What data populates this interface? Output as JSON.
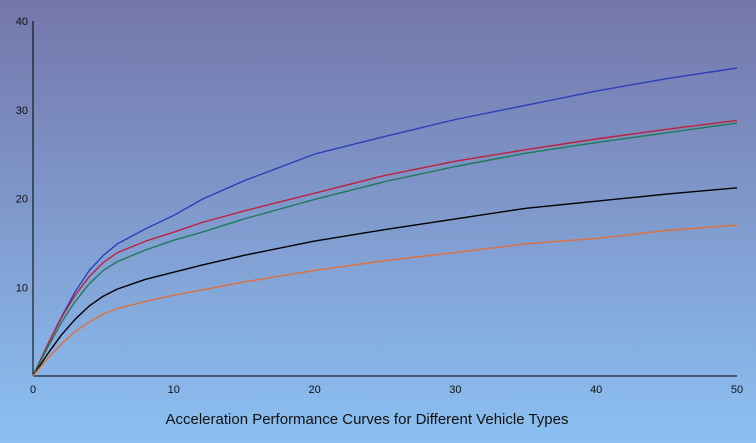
{
  "chart_data": {
    "type": "line",
    "title": "Acceleration Performance Curves for Different Vehicle Types",
    "xlabel": "",
    "ylabel": "",
    "xlim": [
      0,
      50
    ],
    "ylim": [
      0,
      40
    ],
    "x_ticks": [
      10,
      20,
      30,
      40,
      50
    ],
    "y_ticks": [
      10,
      20,
      30,
      40
    ],
    "origin_label": "0",
    "grid": false,
    "legend": "none",
    "colors": {
      "background_top": "#7476aa",
      "background_bottom": "#8cc0f2",
      "axis": "#000000"
    },
    "series": [
      {
        "color": "#2e3fb8",
        "x": [
          0,
          1,
          2,
          3,
          4,
          5,
          6,
          8,
          10,
          12,
          15,
          20,
          25,
          30,
          35,
          40,
          45,
          50
        ],
        "y": [
          0,
          3.4,
          6.6,
          9.5,
          11.9,
          13.6,
          14.9,
          16.6,
          18.1,
          19.9,
          22.0,
          25.0,
          27.0,
          28.9,
          30.5,
          32.1,
          33.5,
          34.7
        ]
      },
      {
        "color": "#c0203a",
        "x": [
          0,
          1,
          2,
          3,
          4,
          5,
          6,
          8,
          10,
          12,
          15,
          20,
          25,
          30,
          35,
          40,
          45,
          50
        ],
        "y": [
          0,
          3.4,
          6.5,
          9.1,
          11.2,
          12.8,
          13.9,
          15.2,
          16.2,
          17.3,
          18.6,
          20.6,
          22.6,
          24.2,
          25.5,
          26.7,
          27.8,
          28.8
        ]
      },
      {
        "color": "#1f7a5a",
        "x": [
          0,
          1,
          2,
          3,
          4,
          5,
          6,
          8,
          10,
          12,
          15,
          20,
          25,
          30,
          35,
          40,
          45,
          50
        ],
        "y": [
          0,
          3.1,
          6.0,
          8.4,
          10.4,
          11.9,
          12.9,
          14.2,
          15.3,
          16.2,
          17.7,
          19.9,
          21.9,
          23.6,
          25.1,
          26.3,
          27.4,
          28.5
        ]
      },
      {
        "color": "#000000",
        "x": [
          0,
          1,
          2,
          3,
          4,
          5,
          6,
          8,
          10,
          12,
          15,
          20,
          25,
          30,
          35,
          40,
          45,
          50
        ],
        "y": [
          0,
          2.4,
          4.6,
          6.4,
          7.9,
          9.0,
          9.8,
          10.9,
          11.7,
          12.5,
          13.6,
          15.2,
          16.5,
          17.7,
          18.9,
          19.7,
          20.5,
          21.2
        ]
      },
      {
        "color": "#e0703a",
        "x": [
          0,
          1,
          2,
          3,
          4,
          5,
          6,
          8,
          10,
          12,
          15,
          20,
          25,
          30,
          35,
          40,
          45,
          50
        ],
        "y": [
          0,
          1.9,
          3.6,
          5.0,
          6.1,
          7.0,
          7.6,
          8.4,
          9.1,
          9.7,
          10.6,
          11.9,
          13.0,
          13.9,
          14.9,
          15.5,
          16.4,
          17.0
        ]
      }
    ]
  }
}
